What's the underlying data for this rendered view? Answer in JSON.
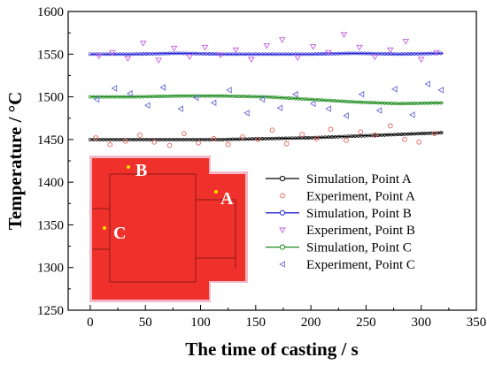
{
  "chart_data": {
    "type": "scatter",
    "xlabel": "The time of casting / s",
    "ylabel": "Temperature / °C",
    "xlim": [
      -20,
      350
    ],
    "ylim": [
      1250,
      1600
    ],
    "xticks": [
      0,
      50,
      100,
      150,
      200,
      250,
      300,
      350
    ],
    "yticks": [
      1250,
      1300,
      1350,
      1400,
      1450,
      1500,
      1550,
      1600
    ],
    "legend_position": "lower-right",
    "series": [
      {
        "name": "Simulation, Point A",
        "kind": "line",
        "color": "#000000",
        "x": [
          0,
          40,
          80,
          120,
          160,
          200,
          240,
          280,
          320
        ],
        "y": [
          1450,
          1450,
          1450,
          1450,
          1451,
          1452,
          1454,
          1456,
          1458
        ]
      },
      {
        "name": "Experiment, Point A",
        "kind": "scatter",
        "marker": "circle",
        "color": "#e0605a",
        "x": [
          5,
          18,
          32,
          45,
          58,
          72,
          85,
          98,
          112,
          125,
          138,
          152,
          165,
          178,
          192,
          205,
          218,
          232,
          245,
          258,
          272,
          285,
          298,
          312
        ],
        "y": [
          1452,
          1444,
          1448,
          1455,
          1447,
          1443,
          1457,
          1446,
          1451,
          1444,
          1453,
          1450,
          1461,
          1445,
          1456,
          1451,
          1462,
          1449,
          1459,
          1455,
          1466,
          1450,
          1447,
          1457
        ]
      },
      {
        "name": "Simulation, Point B",
        "kind": "line",
        "color": "#2a2ad6",
        "x": [
          0,
          40,
          80,
          120,
          160,
          200,
          240,
          280,
          320
        ],
        "y": [
          1550,
          1550,
          1551,
          1550,
          1550,
          1550,
          1551,
          1550,
          1551
        ]
      },
      {
        "name": "Experiment, Point B",
        "kind": "scatter",
        "marker": "triangle-down",
        "color": "#c060e0",
        "x": [
          8,
          20,
          34,
          48,
          62,
          76,
          90,
          104,
          118,
          132,
          146,
          160,
          174,
          188,
          202,
          216,
          230,
          244,
          258,
          272,
          286,
          300,
          314
        ],
        "y": [
          1548,
          1552,
          1545,
          1563,
          1543,
          1557,
          1547,
          1558,
          1549,
          1555,
          1544,
          1560,
          1567,
          1546,
          1559,
          1552,
          1573,
          1558,
          1547,
          1555,
          1565,
          1544,
          1552
        ]
      },
      {
        "name": "Simulation, Point C",
        "kind": "line",
        "color": "#1a8a1a",
        "x": [
          0,
          40,
          80,
          120,
          160,
          200,
          240,
          280,
          320
        ],
        "y": [
          1500,
          1500,
          1501,
          1501,
          1500,
          1497,
          1494,
          1492,
          1493
        ]
      },
      {
        "name": "Experiment, Point C",
        "kind": "scatter",
        "marker": "triangle-left",
        "color": "#6a6ad6",
        "x": [
          6,
          22,
          36,
          52,
          66,
          82,
          96,
          112,
          126,
          142,
          156,
          172,
          186,
          202,
          216,
          232,
          246,
          262,
          276,
          292,
          306,
          318
        ],
        "y": [
          1497,
          1510,
          1504,
          1490,
          1511,
          1486,
          1499,
          1493,
          1508,
          1481,
          1497,
          1487,
          1503,
          1492,
          1486,
          1478,
          1503,
          1484,
          1509,
          1479,
          1515,
          1508
        ]
      }
    ]
  },
  "inset": {
    "color": "#f0302a",
    "labels": {
      "a": "A",
      "b": "B",
      "c": "C"
    }
  }
}
